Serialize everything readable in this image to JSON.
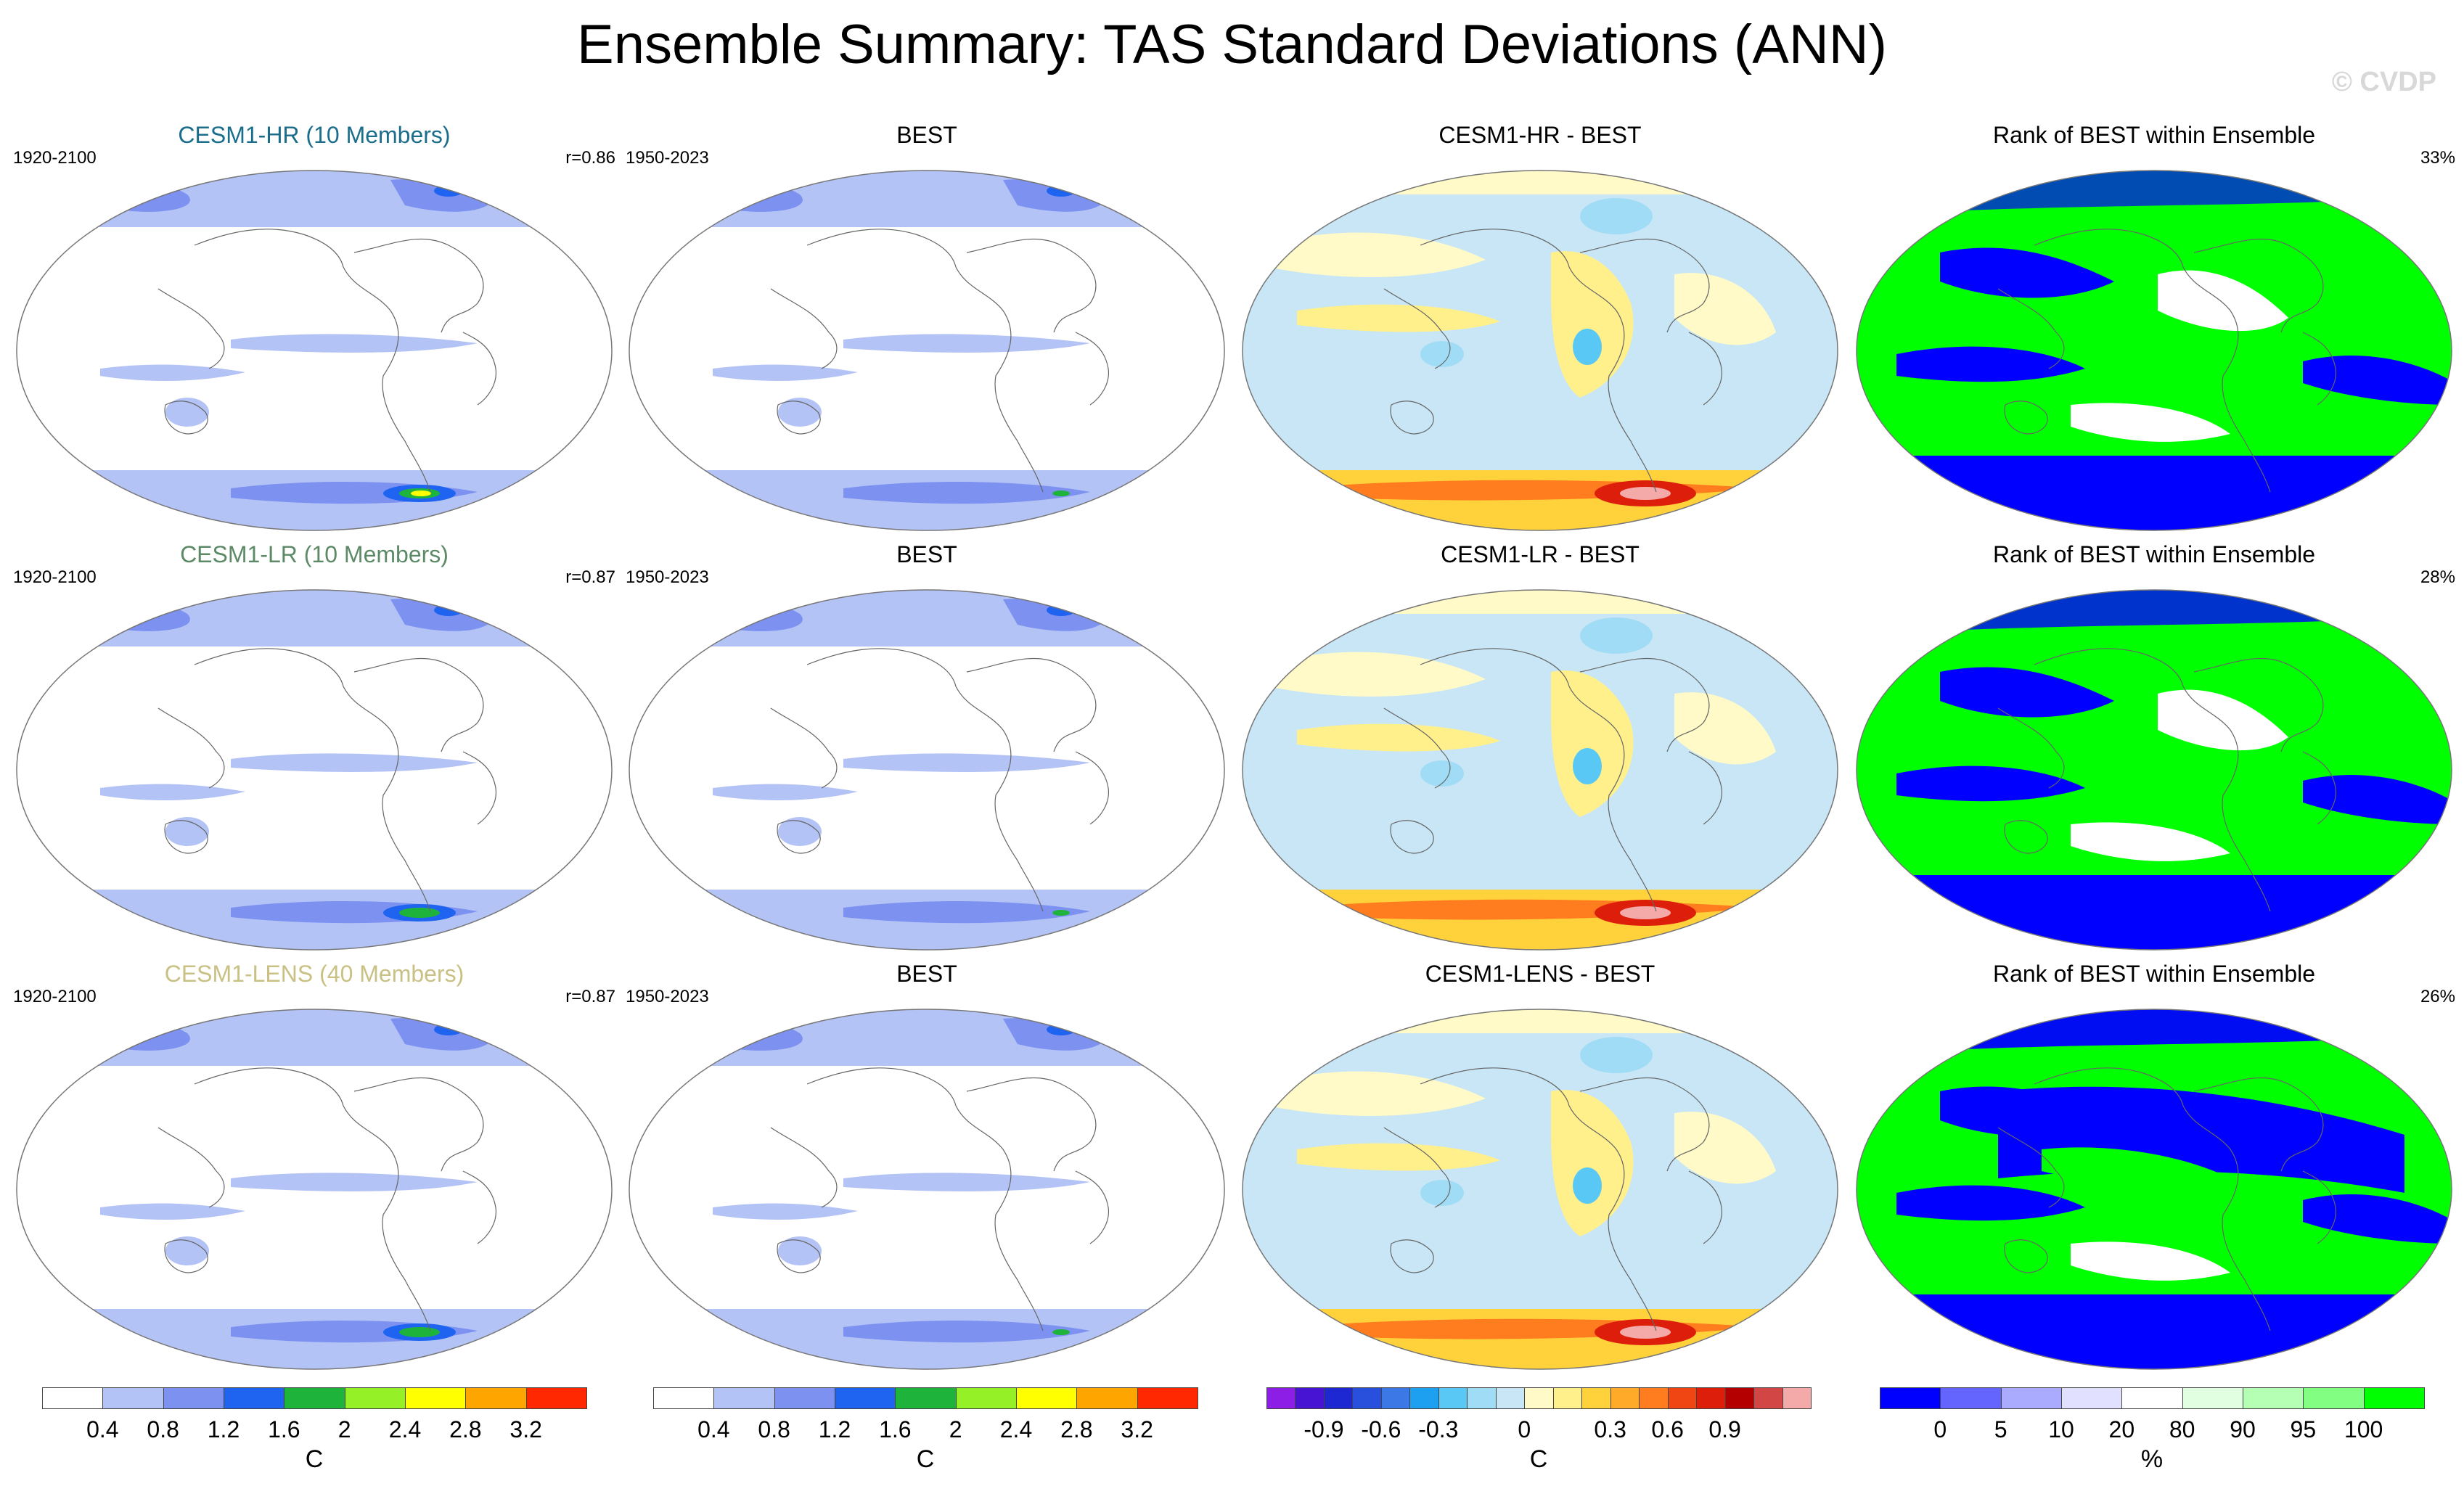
{
  "title": "Ensemble Summary: TAS Standard Deviations (ANN)",
  "watermark": "© CVDP",
  "rows": [
    {
      "model": {
        "title": "CESM1-HR (10 Members)",
        "period": "1920-2100",
        "stat": "r=0.86",
        "title_color": "#1a6e8c"
      },
      "obs": {
        "title": "BEST",
        "period": "1950-2023"
      },
      "diff": {
        "title": "CESM1-HR - BEST"
      },
      "rank": {
        "title": "Rank of BEST within Ensemble",
        "stat": "33%"
      }
    },
    {
      "model": {
        "title": "CESM1-LR (10 Members)",
        "period": "1920-2100",
        "stat": "r=0.87",
        "title_color": "#5d8a66"
      },
      "obs": {
        "title": "BEST",
        "period": "1950-2023"
      },
      "diff": {
        "title": "CESM1-LR - BEST"
      },
      "rank": {
        "title": "Rank of BEST within Ensemble",
        "stat": "28%"
      }
    },
    {
      "model": {
        "title": "CESM1-LENS (40 Members)",
        "period": "1920-2100",
        "stat": "r=0.87",
        "title_color": "#c9c184"
      },
      "obs": {
        "title": "BEST",
        "period": "1950-2023"
      },
      "diff": {
        "title": "CESM1-LENS - BEST"
      },
      "rank": {
        "title": "Rank of BEST within Ensemble",
        "stat": "26%"
      }
    }
  ],
  "chart_data": [
    {
      "type": "heatmap",
      "name": "stddev-colorbar",
      "unit": "C",
      "levels": [
        0.4,
        0.8,
        1.2,
        1.6,
        2,
        2.4,
        2.8,
        3.2
      ],
      "tick_labels": [
        "0.4",
        "0.8",
        "1.2",
        "1.6",
        "2",
        "2.4",
        "2.8",
        "3.2"
      ],
      "colors": [
        "#ffffff",
        "#b4c3f5",
        "#7d91f0",
        "#1e64f0",
        "#1eb43c",
        "#96f028",
        "#ffff00",
        "#ffa500",
        "#ff2800"
      ]
    },
    {
      "type": "heatmap",
      "name": "difference-colorbar",
      "unit": "C",
      "levels": [
        -1.05,
        -0.9,
        -0.75,
        -0.6,
        -0.45,
        -0.3,
        -0.15,
        -0.05,
        0,
        0.05,
        0.15,
        0.3,
        0.45,
        0.6,
        0.75,
        0.9,
        1.05
      ],
      "tick_labels": [
        "-0.9",
        "-0.6",
        "-0.3",
        "0",
        "0.3",
        "0.6",
        "0.9"
      ],
      "tick_values": [
        -0.9,
        -0.6,
        -0.3,
        0,
        0.3,
        0.6,
        0.9
      ],
      "colors": [
        "#8c1ee6",
        "#4614d2",
        "#1e28d2",
        "#2850dc",
        "#3c78e6",
        "#1ea0f0",
        "#5ac8f5",
        "#a0dcf5",
        "#c8e6f5",
        "#fffac8",
        "#fff08c",
        "#ffd23c",
        "#ffaa28",
        "#ff7d1e",
        "#f04614",
        "#dc1e0a",
        "#b40000",
        "#d24646",
        "#f5aaaa"
      ]
    },
    {
      "type": "heatmap",
      "name": "rank-colorbar",
      "unit": "%",
      "levels": [
        0,
        5,
        10,
        20,
        80,
        90,
        95,
        100
      ],
      "tick_labels": [
        "0",
        "5",
        "10",
        "20",
        "80",
        "90",
        "95",
        "100"
      ],
      "colors": [
        "#0000ff",
        "#6464ff",
        "#aaaaff",
        "#e1e1ff",
        "#ffffff",
        "#e1ffe1",
        "#b4ffb4",
        "#82ff82",
        "#00ff00"
      ]
    }
  ]
}
